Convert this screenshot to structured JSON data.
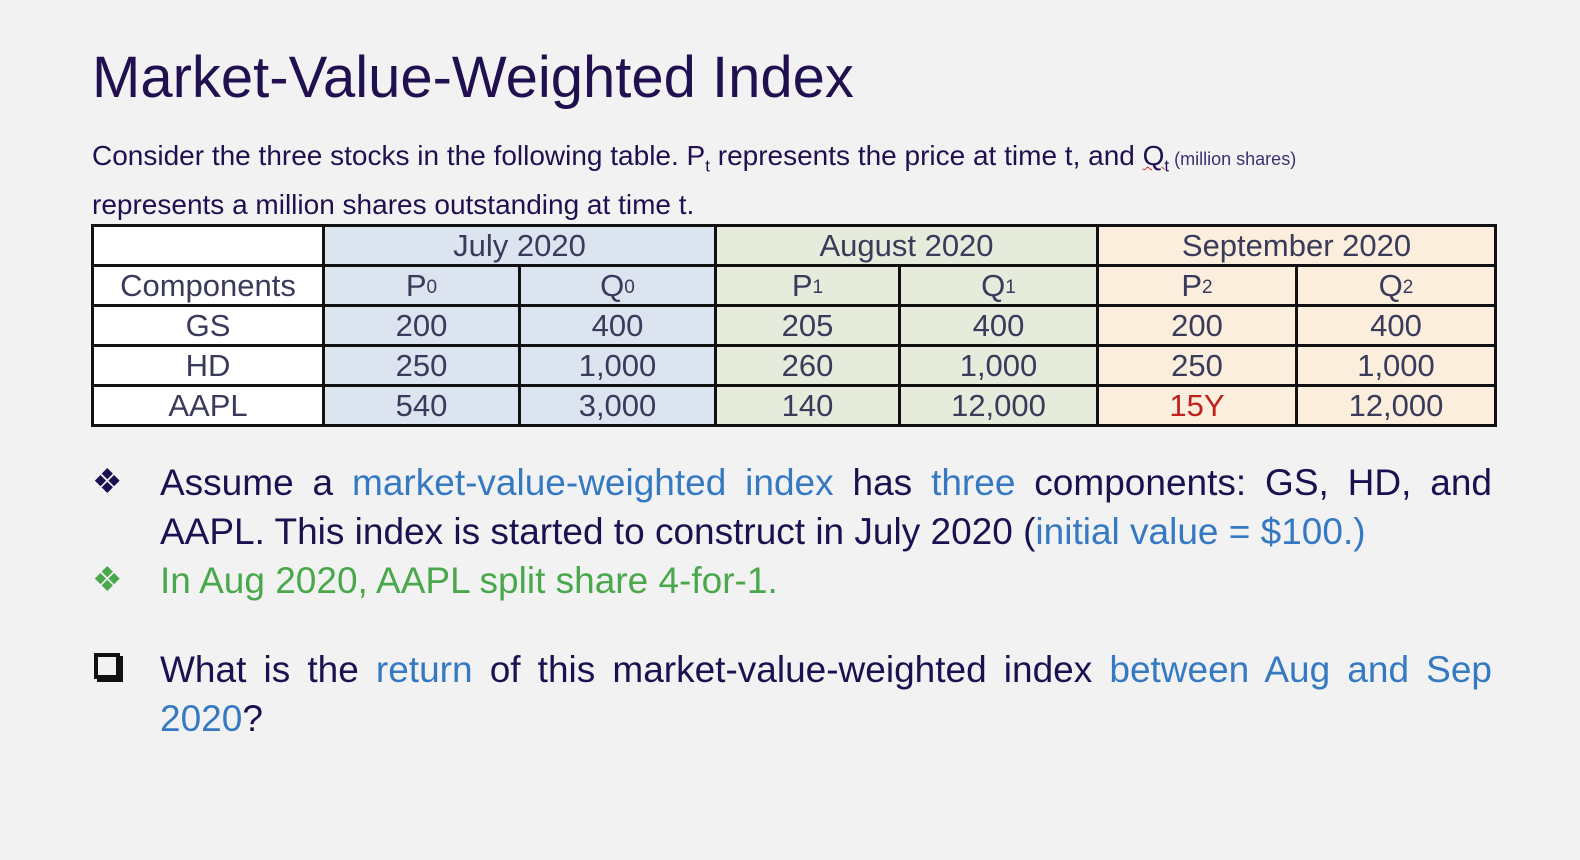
{
  "title": "Market-Value-Weighted Index",
  "intro": {
    "part1": "Consider the three stocks in the following table. P",
    "p_sub": "t",
    "part2": " represents the price at time t, and ",
    "q": "Q",
    "q_sub": "t",
    "note": " (million shares)",
    "part3": "represents a million shares outstanding at time t."
  },
  "table": {
    "months": [
      "July 2020",
      "August 2020",
      "September 2020"
    ],
    "components_label": "Components",
    "subheaders": [
      {
        "letter": "P",
        "sub": "0"
      },
      {
        "letter": "Q",
        "sub": "0"
      },
      {
        "letter": "P",
        "sub": "1"
      },
      {
        "letter": "Q",
        "sub": "1"
      },
      {
        "letter": "P",
        "sub": "2"
      },
      {
        "letter": "Q",
        "sub": "2"
      }
    ],
    "rows": [
      {
        "name": "GS",
        "values": [
          "200",
          "400",
          "205",
          "400",
          "200",
          "400"
        ]
      },
      {
        "name": "HD",
        "values": [
          "250",
          "1,000",
          "260",
          "1,000",
          "250",
          "1,000"
        ]
      },
      {
        "name": "AAPL",
        "values": [
          "540",
          "3,000",
          "140",
          "12,000",
          "15Y",
          "12,000"
        ]
      }
    ]
  },
  "bullets": {
    "b1": {
      "t1": "Assume a ",
      "t2": "market-value-weighted index",
      "t3": " has ",
      "t4": "three",
      "t5": " components: GS, HD, and AAPL. This index is started to construct in July 2020 (",
      "t6": "initial value = $100.)"
    },
    "b2": "In Aug 2020, AAPL split share 4-for-1.",
    "q": {
      "t1": "What is the ",
      "t2": "return",
      "t3": " of this market-value-weighted index ",
      "t4": "between Aug and Sep 2020",
      "t5": "?"
    },
    "diamond_glyph": "❖"
  },
  "colors": {
    "title": "#20104f",
    "july_bg": "#dce4f0",
    "august_bg": "#e6ebdc",
    "september_bg": "#fbeedd",
    "highlight_red": "#c0201e",
    "accent_blue": "#3579c2",
    "accent_green": "#4aa84c"
  }
}
